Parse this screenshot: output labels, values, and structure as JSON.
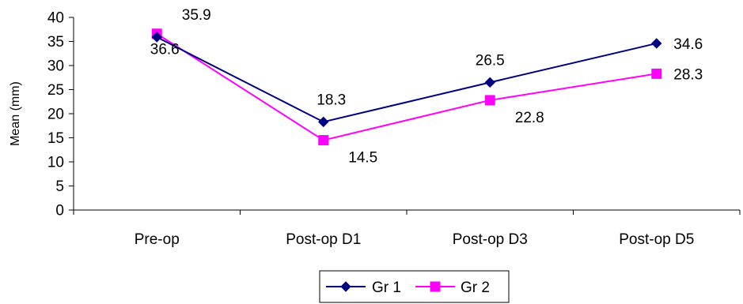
{
  "chart_data": {
    "type": "line",
    "title": "",
    "xlabel": "",
    "ylabel": "Mean (mm)",
    "ylim": [
      0,
      40
    ],
    "yticks": [
      0,
      5,
      10,
      15,
      20,
      25,
      30,
      35,
      40
    ],
    "categories": [
      "Pre-op",
      "Post-op D1",
      "Post-op D3",
      "Post-op D5"
    ],
    "series": [
      {
        "name": "Gr 1",
        "values": [
          35.9,
          18.3,
          26.5,
          34.6
        ],
        "labels": [
          "35.9",
          "18.3",
          "26.5",
          "34.6"
        ],
        "color": "#000080",
        "marker": "diamond"
      },
      {
        "name": "Gr 2",
        "values": [
          36.6,
          14.5,
          22.8,
          28.3
        ],
        "labels": [
          "36.6",
          "14.5",
          "22.8",
          "28.3"
        ],
        "color": "#ff00ff",
        "marker": "square"
      }
    ],
    "grid": false,
    "legend_position": "bottom"
  }
}
